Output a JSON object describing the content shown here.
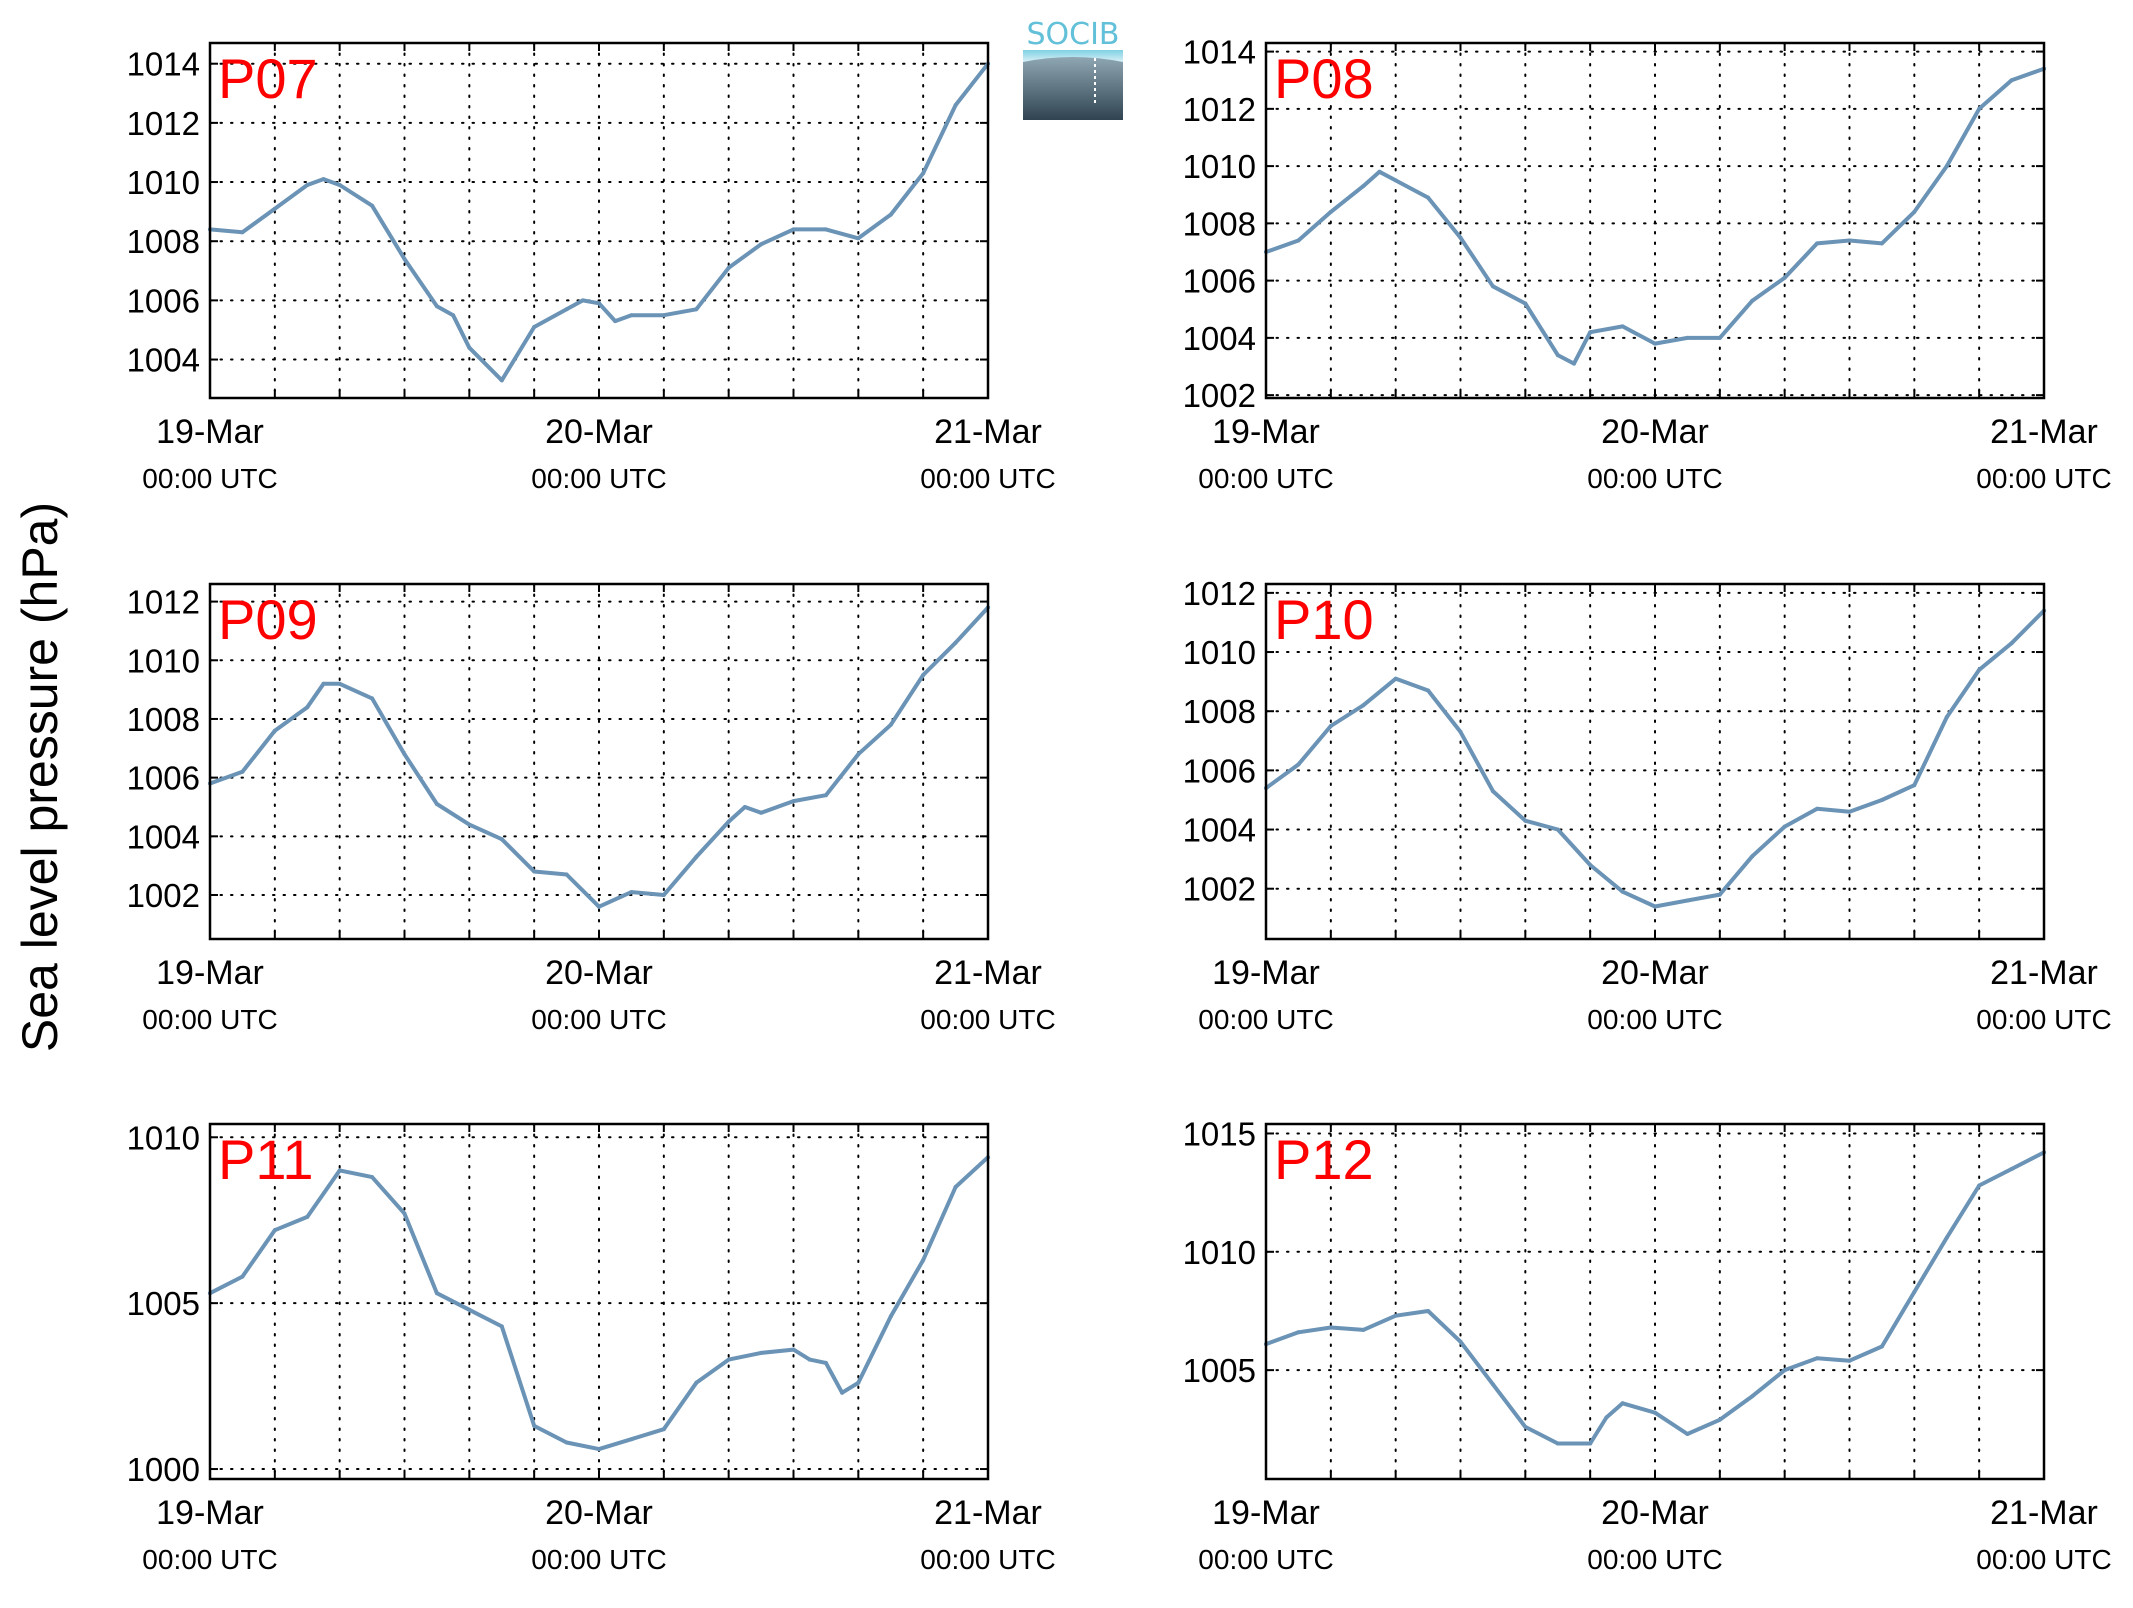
{
  "figure": {
    "ylabel": "Sea level pressure (hPa)",
    "line_color": "#6a93b6",
    "label_color": "#ff0000"
  },
  "logo": {
    "text": "SOCIB",
    "text_color": "#62c0d8"
  },
  "chart_data": [
    {
      "type": "line",
      "station": "P07",
      "xticks": [
        {
          "day": "19-Mar",
          "time": "00:00 UTC"
        },
        {
          "day": "20-Mar",
          "time": "00:00 UTC"
        },
        {
          "day": "21-Mar",
          "time": "00:00 UTC"
        }
      ],
      "xlim_hours": [
        0,
        48
      ],
      "ylim": [
        1002.7,
        1014.7
      ],
      "yticks": [
        1004,
        1006,
        1008,
        1010,
        1012,
        1014
      ],
      "grid": true,
      "x_hours": [
        0,
        2,
        4,
        6,
        7,
        8,
        10,
        12,
        14,
        15,
        16,
        18,
        20,
        22,
        23,
        24,
        25,
        26,
        28,
        30,
        32,
        34,
        36,
        38,
        40,
        42,
        44,
        46,
        48
      ],
      "values": [
        1008.4,
        1008.3,
        1009.1,
        1009.9,
        1010.1,
        1009.9,
        1009.2,
        1007.4,
        1005.8,
        1005.5,
        1004.4,
        1003.3,
        1005.1,
        1005.7,
        1006.0,
        1005.9,
        1005.3,
        1005.5,
        1005.5,
        1005.7,
        1007.1,
        1007.9,
        1008.4,
        1008.4,
        1008.1,
        1008.9,
        1010.3,
        1012.6,
        1014.0
      ]
    },
    {
      "type": "line",
      "station": "P08",
      "xticks": [
        {
          "day": "19-Mar",
          "time": "00:00 UTC"
        },
        {
          "day": "20-Mar",
          "time": "00:00 UTC"
        },
        {
          "day": "21-Mar",
          "time": "00:00 UTC"
        }
      ],
      "xlim_hours": [
        0,
        48
      ],
      "ylim": [
        1001.9,
        1014.3
      ],
      "yticks": [
        1002,
        1004,
        1006,
        1008,
        1010,
        1012,
        1014
      ],
      "grid": true,
      "x_hours": [
        0,
        2,
        4,
        6,
        7,
        8,
        10,
        12,
        14,
        16,
        18,
        19,
        20,
        22,
        24,
        26,
        28,
        30,
        32,
        34,
        36,
        38,
        40,
        42,
        44,
        46,
        48
      ],
      "values": [
        1007.0,
        1007.4,
        1008.4,
        1009.3,
        1009.8,
        1009.5,
        1008.9,
        1007.5,
        1005.8,
        1005.2,
        1003.4,
        1003.1,
        1004.2,
        1004.4,
        1003.8,
        1004.0,
        1004.0,
        1005.3,
        1006.1,
        1007.3,
        1007.4,
        1007.3,
        1008.4,
        1010.0,
        1012.0,
        1013.0,
        1013.4
      ]
    },
    {
      "type": "line",
      "station": "P09",
      "xticks": [
        {
          "day": "19-Mar",
          "time": "00:00 UTC"
        },
        {
          "day": "20-Mar",
          "time": "00:00 UTC"
        },
        {
          "day": "21-Mar",
          "time": "00:00 UTC"
        }
      ],
      "xlim_hours": [
        0,
        48
      ],
      "ylim": [
        1000.5,
        1012.6
      ],
      "yticks": [
        1002,
        1004,
        1006,
        1008,
        1010,
        1012
      ],
      "grid": true,
      "x_hours": [
        0,
        2,
        4,
        6,
        7,
        8,
        10,
        12,
        14,
        16,
        18,
        20,
        22,
        24,
        26,
        28,
        30,
        32,
        33,
        34,
        36,
        38,
        40,
        42,
        44,
        46,
        48
      ],
      "values": [
        1005.8,
        1006.2,
        1007.6,
        1008.4,
        1009.2,
        1009.2,
        1008.7,
        1006.8,
        1005.1,
        1004.4,
        1003.9,
        1002.8,
        1002.7,
        1001.6,
        1002.1,
        1002.0,
        1003.3,
        1004.5,
        1005.0,
        1004.8,
        1005.2,
        1005.4,
        1006.8,
        1007.8,
        1009.5,
        1010.6,
        1011.8
      ]
    },
    {
      "type": "line",
      "station": "P10",
      "xticks": [
        {
          "day": "19-Mar",
          "time": "00:00 UTC"
        },
        {
          "day": "20-Mar",
          "time": "00:00 UTC"
        },
        {
          "day": "21-Mar",
          "time": "00:00 UTC"
        }
      ],
      "xlim_hours": [
        0,
        48
      ],
      "ylim": [
        1000.3,
        1012.3
      ],
      "yticks": [
        1002,
        1004,
        1006,
        1008,
        1010,
        1012
      ],
      "grid": true,
      "x_hours": [
        0,
        2,
        4,
        6,
        8,
        10,
        12,
        14,
        16,
        18,
        20,
        22,
        24,
        26,
        28,
        30,
        32,
        34,
        36,
        38,
        40,
        42,
        44,
        46,
        48
      ],
      "values": [
        1005.4,
        1006.2,
        1007.5,
        1008.2,
        1009.1,
        1008.7,
        1007.3,
        1005.3,
        1004.3,
        1004.0,
        1002.8,
        1001.9,
        1001.4,
        1001.6,
        1001.8,
        1003.1,
        1004.1,
        1004.7,
        1004.6,
        1005.0,
        1005.5,
        1007.8,
        1009.4,
        1010.3,
        1011.4
      ]
    },
    {
      "type": "line",
      "station": "P11",
      "xticks": [
        {
          "day": "19-Mar",
          "time": "00:00 UTC"
        },
        {
          "day": "20-Mar",
          "time": "00:00 UTC"
        },
        {
          "day": "21-Mar",
          "time": "00:00 UTC"
        }
      ],
      "xlim_hours": [
        0,
        48
      ],
      "ylim": [
        999.7,
        1010.4
      ],
      "yticks": [
        1000,
        1005,
        1010
      ],
      "grid": true,
      "x_hours": [
        0,
        2,
        4,
        6,
        8,
        10,
        12,
        14,
        16,
        18,
        20,
        22,
        24,
        26,
        28,
        30,
        32,
        34,
        36,
        37,
        38,
        39,
        40,
        42,
        44,
        46,
        48
      ],
      "values": [
        1005.3,
        1005.8,
        1007.2,
        1007.6,
        1009.0,
        1008.8,
        1007.7,
        1005.3,
        1004.8,
        1004.3,
        1001.3,
        1000.8,
        1000.6,
        1000.9,
        1001.2,
        1002.6,
        1003.3,
        1003.5,
        1003.6,
        1003.3,
        1003.2,
        1002.3,
        1002.6,
        1004.6,
        1006.3,
        1008.5,
        1009.4
      ]
    },
    {
      "type": "line",
      "station": "P12",
      "xticks": [
        {
          "day": "19-Mar",
          "time": "00:00 UTC"
        },
        {
          "day": "20-Mar",
          "time": "00:00 UTC"
        },
        {
          "day": "21-Mar",
          "time": "00:00 UTC"
        }
      ],
      "xlim_hours": [
        0,
        48
      ],
      "ylim": [
        1000.4,
        1015.4
      ],
      "yticks": [
        1005,
        1010,
        1015
      ],
      "grid": true,
      "x_hours": [
        0,
        2,
        4,
        6,
        8,
        10,
        12,
        14,
        16,
        18,
        20,
        21,
        22,
        24,
        26,
        28,
        30,
        32,
        34,
        36,
        38,
        40,
        42,
        44,
        46,
        48
      ],
      "values": [
        1006.1,
        1006.6,
        1006.8,
        1006.7,
        1007.3,
        1007.5,
        1006.2,
        1004.4,
        1002.6,
        1001.9,
        1001.9,
        1003.0,
        1003.6,
        1003.2,
        1002.3,
        1002.9,
        1003.9,
        1005.0,
        1005.5,
        1005.4,
        1006.0,
        1008.3,
        1010.6,
        1012.8,
        1013.5,
        1014.2
      ]
    }
  ]
}
